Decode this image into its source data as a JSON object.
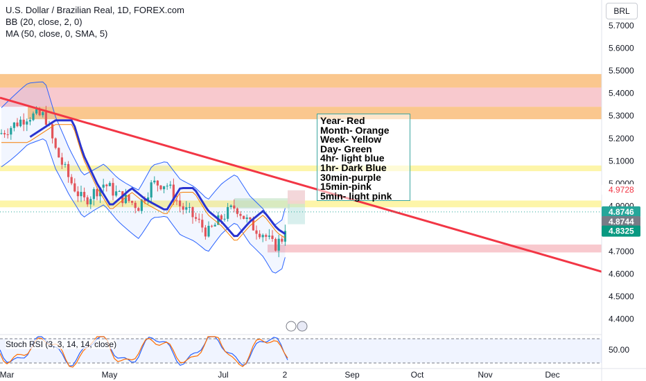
{
  "legend": {
    "symbol_line": "U.S. Dollar / Brazilian Real, 1D, FOREX.com",
    "bb_line": "BB (20, close, 2, 0)",
    "ma_line": "MA (50, close, 0, SMA, 5)"
  },
  "currency_button": "BRL",
  "rsi_label": "Stoch RSI (3, 3, 14, 14, close)",
  "annotation_lines": [
    "Year- Red",
    "Month- Orange",
    "Week- Yellow",
    "Day- Green",
    "4hr- light blue",
    "1hr- Dark Blue",
    "30min-purple",
    "15min-pink",
    "5min- light pink"
  ],
  "colors": {
    "up": "#26a69a",
    "down": "#ef5350",
    "trendline": "#f23645",
    "ma": "#2933cf",
    "bb": "#2962ff",
    "year_zone": "#f7c0c6",
    "month_zone": "#f9bd7a",
    "week_zone": "#fdf39a"
  },
  "chart_data": {
    "type": "candlestick",
    "y_axis": {
      "ticks": [
        "5.7000",
        "5.6000",
        "5.5000",
        "5.4000",
        "5.3000",
        "5.2000",
        "5.1000",
        "5.0000",
        "4.9000",
        "4.7000",
        "4.6000",
        "4.5000",
        "4.4000"
      ],
      "range": [
        4.37,
        5.78
      ]
    },
    "x_axis": {
      "ticks": [
        "Mar",
        "May",
        "Jul",
        "2",
        "Sep",
        "Oct",
        "Nov",
        "Dec"
      ]
    },
    "price_labels": [
      {
        "value": "4.9728",
        "color": "#f23645",
        "bg": "#ffffff"
      },
      {
        "value": "4.8746",
        "color": "#ffffff",
        "bg": "#26a69a"
      },
      {
        "value": "4.8744",
        "color": "#ffffff",
        "bg": "#787b86"
      },
      {
        "value": "4.8325",
        "color": "#ffffff",
        "bg": "#089981"
      }
    ],
    "zones": [
      {
        "name": "month",
        "top": 5.485,
        "bottom": 5.425
      },
      {
        "name": "year",
        "top": 5.425,
        "bottom": 5.34
      },
      {
        "name": "month",
        "top": 5.34,
        "bottom": 5.285
      },
      {
        "name": "week",
        "top": 5.08,
        "bottom": 5.055
      },
      {
        "name": "week",
        "top": 4.925,
        "bottom": 4.895
      },
      {
        "name": "year",
        "top": 4.73,
        "bottom": 4.695
      }
    ],
    "trendline": {
      "start": 5.38,
      "end": 4.61
    },
    "rsi": {
      "level": "50.00"
    }
  }
}
